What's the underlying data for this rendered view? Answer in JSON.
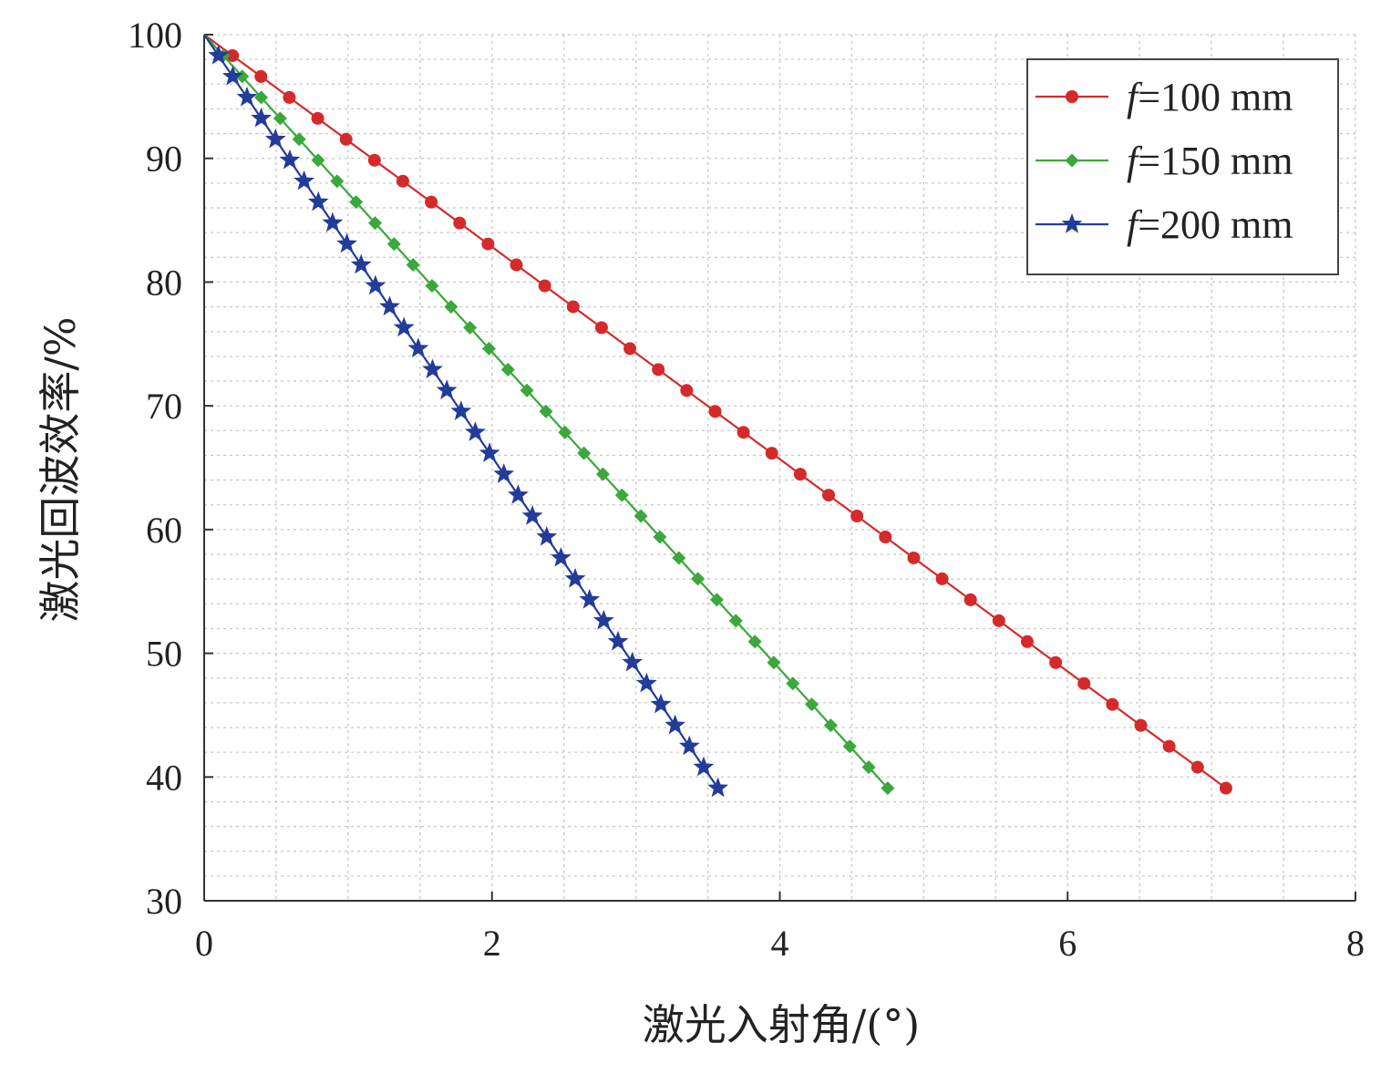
{
  "chart_data": {
    "type": "line",
    "xlabel": "激光入射角/(°)",
    "ylabel": "激光回波效率/%",
    "xlim": [
      0,
      8
    ],
    "ylim": [
      30,
      100
    ],
    "x_ticks": [
      "0",
      "2",
      "4",
      "6",
      "8"
    ],
    "y_ticks": [
      "30",
      "40",
      "50",
      "60",
      "70",
      "80",
      "90",
      "100"
    ],
    "grid": "dotted minor grid",
    "legend_position": "top-right",
    "series": [
      {
        "name": "f=100 mm",
        "name_italic": "f",
        "name_rest": "=100 mm",
        "color": "#d42a2a",
        "marker": "circle",
        "x_start": 0,
        "x_end": 7.1,
        "points": 37,
        "y_start": 100,
        "y_end": 39.1
      },
      {
        "name": "f=150 mm",
        "name_italic": "f",
        "name_rest": "=150 mm",
        "color": "#3aa83a",
        "marker": "diamond",
        "x_start": 0,
        "x_end": 4.75,
        "points": 37,
        "y_start": 100,
        "y_end": 39.1
      },
      {
        "name": "f=200 mm",
        "name_italic": "f",
        "name_rest": "=200 mm",
        "color": "#233c9a",
        "marker": "star",
        "x_start": 0,
        "x_end": 3.57,
        "points": 37,
        "y_start": 100,
        "y_end": 39.1
      }
    ]
  }
}
